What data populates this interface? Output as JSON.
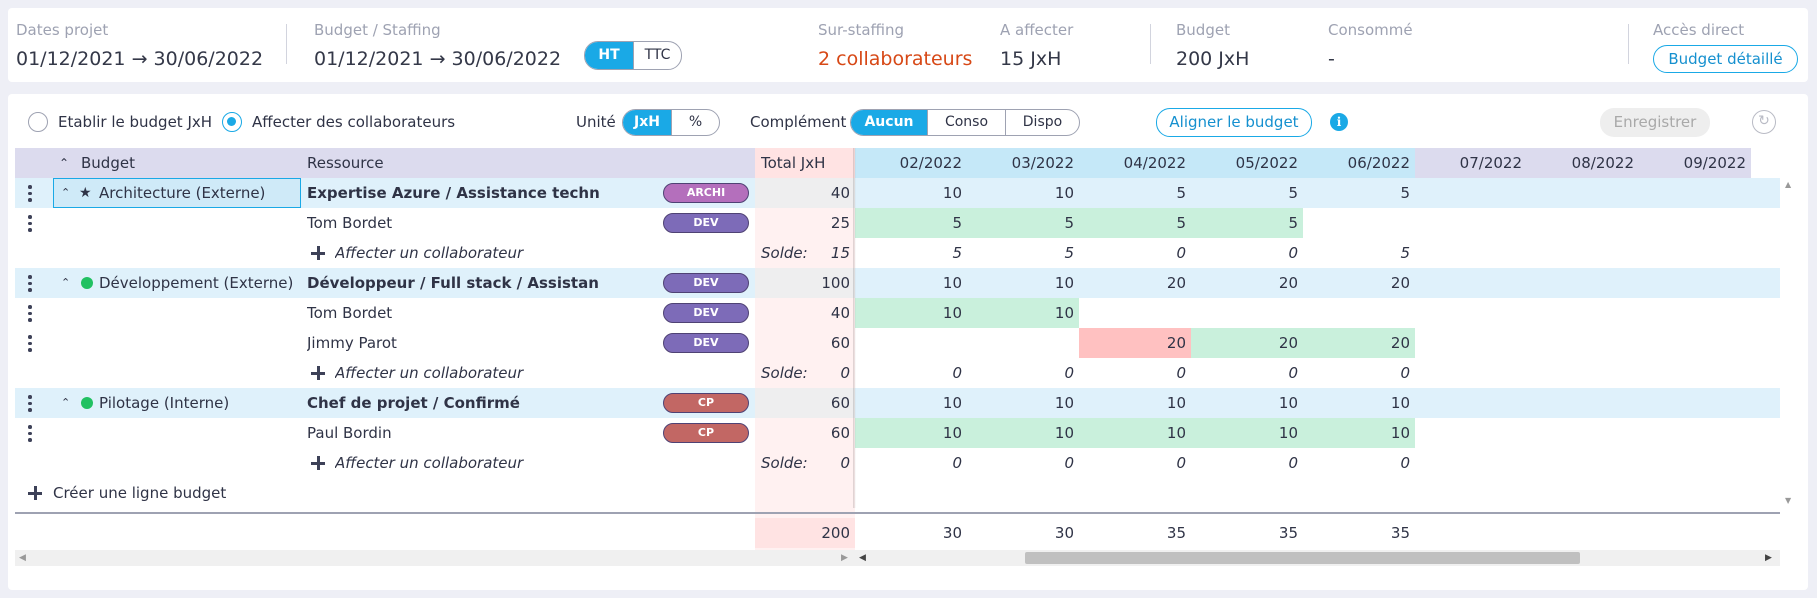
{
  "header": {
    "dates_projet": {
      "label": "Dates projet",
      "start": "01/12/2021",
      "arrow": "→",
      "end": "30/06/2022"
    },
    "budget_staffing": {
      "label": "Budget / Staffing",
      "start": "01/12/2021",
      "arrow": "→",
      "end": "30/06/2022"
    },
    "tax_toggle": {
      "ht": "HT",
      "ttc": "TTC",
      "selected": "HT"
    },
    "sur_staffing": {
      "label": "Sur-staffing",
      "value": "2 collaborateurs"
    },
    "a_affecter": {
      "label": "A affecter",
      "value": "15 JxH"
    },
    "budget": {
      "label": "Budget",
      "value": "200 JxH"
    },
    "consomme": {
      "label": "Consommé",
      "value": "-"
    },
    "acces_direct": {
      "label": "Accès direct",
      "button": "Budget détaillé"
    }
  },
  "toolbar": {
    "radio_budget": "Etablir le budget JxH",
    "radio_affecter": "Affecter des collaborateurs",
    "selected_radio": "affecter",
    "unite_label": "Unité",
    "unite_options": [
      "JxH",
      "%"
    ],
    "unite_selected": "JxH",
    "complement_label": "Complément",
    "complement_options": [
      "Aucun",
      "Conso",
      "Dispo"
    ],
    "complement_selected": "Aucun",
    "align_button": "Aligner le budget",
    "info_icon": "i",
    "save_button": "Enregistrer",
    "refresh_icon": "↻"
  },
  "grid": {
    "columns": {
      "budget": "Budget",
      "collapse_all_icon": "chevrons-up-icon",
      "ressource": "Ressource",
      "total": "Total JxH",
      "months": [
        "02/2022",
        "03/2022",
        "04/2022",
        "05/2022",
        "06/2022",
        "07/2022",
        "08/2022",
        "09/2022"
      ]
    },
    "solde_label": "Solde:",
    "affecter_label": "Affecter un collaborateur",
    "create_line_label": "Créer une ligne budget",
    "groups": [
      {
        "name": "Architecture (Externe)",
        "marker": "★",
        "marker_type": "star",
        "resource": "Expertise Azure / Assistance technique",
        "badge": "ARCHI",
        "total": "40",
        "months": [
          "10",
          "10",
          "5",
          "5",
          "5"
        ],
        "staff": [
          {
            "name": "Tom Bordet",
            "badge": "DEV",
            "total": "25",
            "months": [
              "5",
              "5",
              "5",
              "5",
              ""
            ]
          }
        ],
        "solde": {
          "total": "15",
          "months": [
            "5",
            "5",
            "0",
            "0",
            "5"
          ]
        }
      },
      {
        "name": "Développement (Externe)",
        "marker_type": "dot",
        "resource": "Développeur / Full stack / Assistance technique",
        "badge": "DEV",
        "total": "100",
        "months": [
          "10",
          "10",
          "20",
          "20",
          "20"
        ],
        "staff": [
          {
            "name": "Tom Bordet",
            "badge": "DEV",
            "total": "40",
            "months": [
              "10",
              "10",
              "",
              "",
              ""
            ]
          },
          {
            "name": "Jimmy Parot",
            "badge": "DEV",
            "total": "60",
            "months": [
              "",
              "",
              "20",
              "20",
              "20"
            ],
            "over": [
              false,
              false,
              true,
              false,
              false
            ]
          }
        ],
        "solde": {
          "total": "0",
          "months": [
            "0",
            "0",
            "0",
            "0",
            "0"
          ]
        }
      },
      {
        "name": "Pilotage (Interne)",
        "marker_type": "dot",
        "resource": "Chef de projet / Confirmé",
        "badge": "CP",
        "total": "60",
        "months": [
          "10",
          "10",
          "10",
          "10",
          "10"
        ],
        "staff": [
          {
            "name": "Paul Bordin",
            "badge": "CP",
            "total": "60",
            "months": [
              "10",
              "10",
              "10",
              "10",
              "10"
            ]
          }
        ],
        "solde": {
          "total": "0",
          "months": [
            "0",
            "0",
            "0",
            "0",
            "0"
          ]
        }
      }
    ],
    "totals": {
      "total": "200",
      "months": [
        "30",
        "30",
        "35",
        "35",
        "35"
      ]
    }
  },
  "colors": {
    "accent": "#1aa9e6",
    "alert": "#d74816",
    "archi_badge": "#b46fbc",
    "dev_badge": "#7d6bb8",
    "cp_badge": "#c26764",
    "staffed_cell": "#c9f0dc",
    "over_cell": "#ffc1c1",
    "group_row": "#dff1fb",
    "header_row": "#dcdbee",
    "month_header": "#c5e8f8",
    "total_col": "#fff1f1"
  }
}
